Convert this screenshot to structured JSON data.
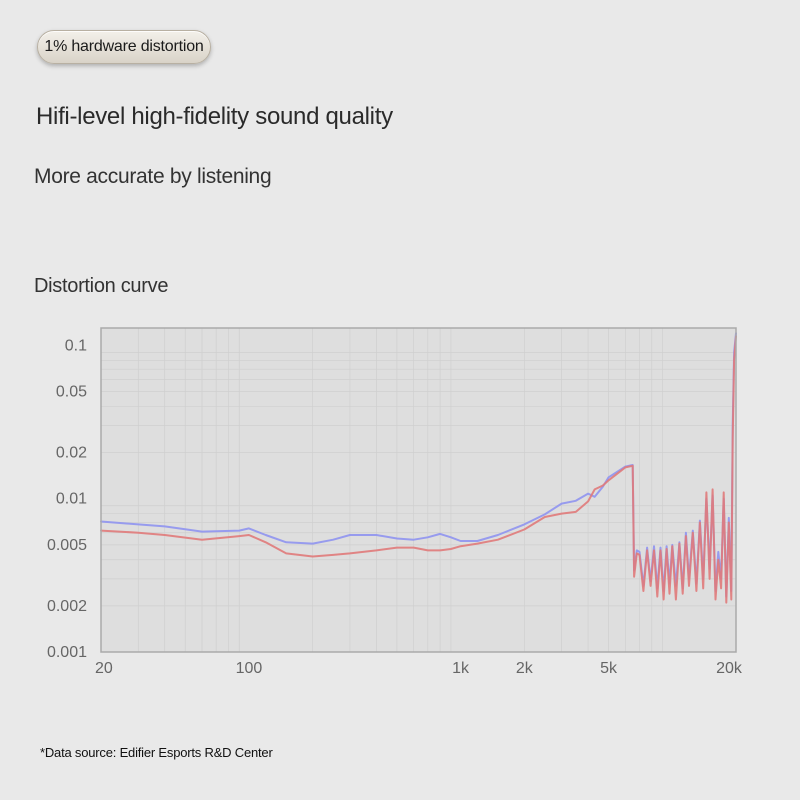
{
  "badge": {
    "label": "1% hardware distortion"
  },
  "header": {
    "title": "Hifi-level high-fidelity sound quality",
    "subtitle": "More accurate by listening"
  },
  "chart_heading": "Distortion curve",
  "footnote": "*Data source: Edifier Esports R&D Center",
  "colors": {
    "blue_series": "#8f93f0",
    "red_series": "#e07a7a",
    "plot_bg": "#dedede",
    "grid": "#cfcfcf"
  },
  "chart_data": {
    "type": "line",
    "title": "",
    "xlabel": "",
    "ylabel": "",
    "x_scale": "log",
    "y_scale": "log",
    "xlim": [
      20,
      20000
    ],
    "ylim": [
      0.001,
      0.13
    ],
    "grid": true,
    "x_ticks": [
      {
        "value": 20,
        "label": "20"
      },
      {
        "value": 100,
        "label": "100"
      },
      {
        "value": 1000,
        "label": "1k"
      },
      {
        "value": 2000,
        "label": "2k"
      },
      {
        "value": 5000,
        "label": "5k"
      },
      {
        "value": 20000,
        "label": "20k"
      }
    ],
    "y_ticks": [
      {
        "value": 0.1,
        "label": "0.1"
      },
      {
        "value": 0.05,
        "label": "0.05"
      },
      {
        "value": 0.02,
        "label": "0.02"
      },
      {
        "value": 0.01,
        "label": "0.01"
      },
      {
        "value": 0.005,
        "label": "0.005"
      },
      {
        "value": 0.002,
        "label": "0.002"
      },
      {
        "value": 0.001,
        "label": "0.001"
      }
    ],
    "series": [
      {
        "color": "#8f93f0",
        "x": [
          20,
          30,
          40,
          60,
          90,
          100,
          120,
          150,
          200,
          250,
          300,
          400,
          500,
          600,
          700,
          800,
          900,
          1000,
          1200,
          1500,
          2000,
          2500,
          3000,
          3500,
          4000,
          4300,
          4700,
          5000,
          6000,
          6500,
          6600,
          6800,
          7000,
          7300,
          7600,
          7900,
          8200,
          8500,
          8800,
          9100,
          9400,
          9700,
          10000,
          10400,
          10800,
          11200,
          11600,
          12000,
          12500,
          13000,
          13500,
          14000,
          14500,
          15000,
          15500,
          16000,
          16500,
          17000,
          17500,
          18000,
          18500,
          19000,
          19300,
          19600,
          20000
        ],
        "y": [
          0.0071,
          0.0068,
          0.0066,
          0.0061,
          0.0062,
          0.0064,
          0.0058,
          0.0052,
          0.0051,
          0.0054,
          0.0058,
          0.0058,
          0.0055,
          0.0054,
          0.0056,
          0.0059,
          0.0056,
          0.0053,
          0.0053,
          0.0058,
          0.0068,
          0.0079,
          0.0093,
          0.0097,
          0.0108,
          0.0103,
          0.012,
          0.0138,
          0.0162,
          0.0166,
          0.0034,
          0.0046,
          0.0045,
          0.0027,
          0.0048,
          0.0029,
          0.0049,
          0.0026,
          0.0048,
          0.0025,
          0.0049,
          0.0028,
          0.005,
          0.0027,
          0.0052,
          0.0026,
          0.006,
          0.003,
          0.0062,
          0.0028,
          0.0072,
          0.003,
          0.01,
          0.0035,
          0.0105,
          0.0025,
          0.0045,
          0.003,
          0.01,
          0.0023,
          0.0075,
          0.0025,
          0.03,
          0.09,
          0.12
        ]
      },
      {
        "color": "#e07a7a",
        "x": [
          20,
          30,
          40,
          60,
          90,
          100,
          120,
          150,
          200,
          250,
          300,
          400,
          500,
          600,
          700,
          800,
          900,
          1000,
          1200,
          1500,
          2000,
          2500,
          3000,
          3500,
          4000,
          4300,
          4700,
          5000,
          6000,
          6500,
          6600,
          6800,
          7000,
          7300,
          7600,
          7900,
          8200,
          8500,
          8800,
          9100,
          9400,
          9700,
          10000,
          10400,
          10800,
          11200,
          11600,
          12000,
          12500,
          13000,
          13500,
          14000,
          14500,
          15000,
          15500,
          16000,
          16500,
          17000,
          17500,
          18000,
          18500,
          19000,
          19300,
          19600,
          20000
        ],
        "y": [
          0.0062,
          0.006,
          0.0058,
          0.0054,
          0.0057,
          0.0058,
          0.0052,
          0.0044,
          0.0042,
          0.0043,
          0.0044,
          0.0046,
          0.0048,
          0.0048,
          0.0046,
          0.0046,
          0.0047,
          0.0049,
          0.0051,
          0.0054,
          0.0063,
          0.0076,
          0.008,
          0.0082,
          0.0096,
          0.0115,
          0.0122,
          0.0132,
          0.016,
          0.0164,
          0.0031,
          0.0044,
          0.0043,
          0.0025,
          0.0046,
          0.0027,
          0.0046,
          0.0023,
          0.0046,
          0.0022,
          0.0047,
          0.0024,
          0.0049,
          0.0022,
          0.0051,
          0.0024,
          0.0057,
          0.0027,
          0.006,
          0.0025,
          0.007,
          0.0026,
          0.011,
          0.003,
          0.0115,
          0.0022,
          0.004,
          0.0026,
          0.011,
          0.0021,
          0.007,
          0.0022,
          0.025,
          0.08,
          0.115
        ]
      }
    ]
  }
}
